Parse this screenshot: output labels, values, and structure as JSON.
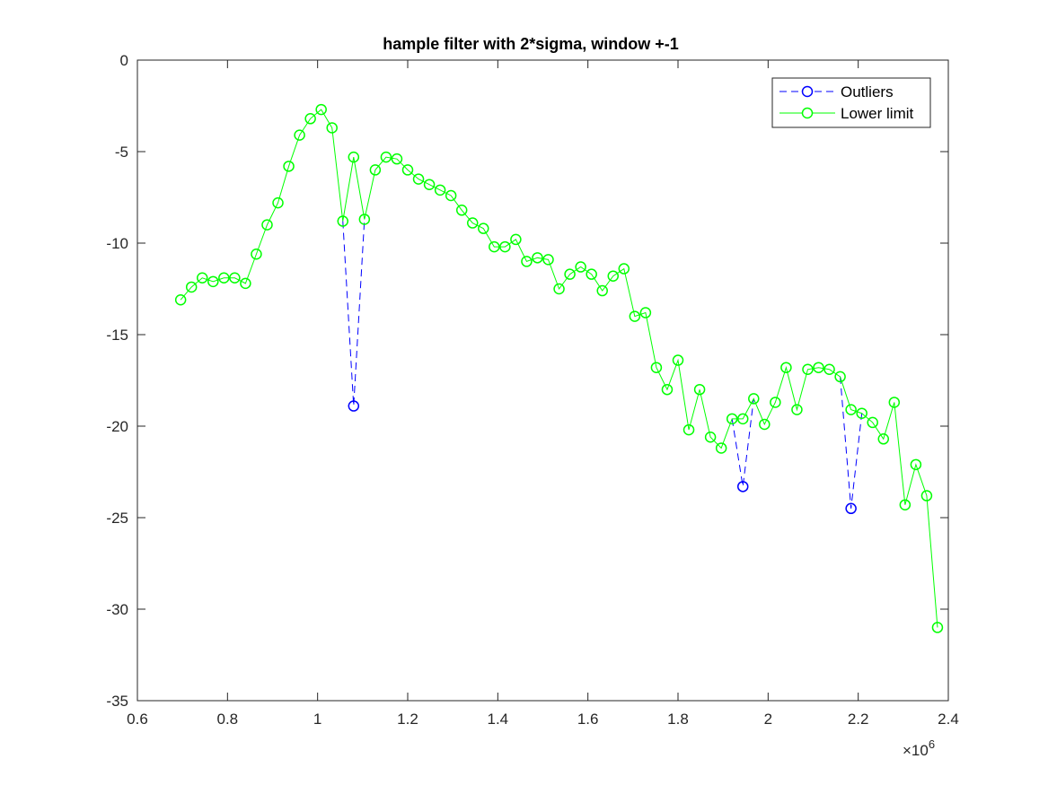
{
  "chart_data": {
    "type": "line",
    "title": "hample filter with 2*sigma, window +-1",
    "xlabel": "",
    "ylabel": "",
    "xlim": [
      600000,
      2400000
    ],
    "ylim": [
      -35,
      0
    ],
    "x_exponent_label": "×10",
    "x_exponent_power": "6",
    "xticks": [
      600000,
      800000,
      1000000,
      1200000,
      1400000,
      1600000,
      1800000,
      2000000,
      2200000,
      2400000
    ],
    "xtick_labels": [
      "0.6",
      "0.8",
      "1",
      "1.2",
      "1.4",
      "1.6",
      "1.8",
      "2",
      "2.2",
      "2.4"
    ],
    "yticks": [
      0,
      -5,
      -10,
      -15,
      -20,
      -25,
      -30,
      -35
    ],
    "ytick_labels": [
      "0",
      "-5",
      "-10",
      "-15",
      "-20",
      "-25",
      "-30",
      "-35"
    ],
    "grid": false,
    "legend_position": "top-right",
    "series": [
      {
        "name": "Outliers",
        "color": "#0000ff",
        "line_style": "dashed",
        "marker": "circle",
        "segments": [
          {
            "x": [
              1056000,
              1080000,
              1104000
            ],
            "y": [
              -8.8,
              -18.9,
              -8.7
            ],
            "marker_indices": [
              1
            ]
          },
          {
            "x": [
              1920000,
              1944000,
              1968000
            ],
            "y": [
              -19.6,
              -23.3,
              -18.5
            ],
            "marker_indices": [
              1
            ]
          },
          {
            "x": [
              2160000,
              2184000,
              2208000
            ],
            "y": [
              -17.3,
              -24.5,
              -19.3
            ],
            "marker_indices": [
              1
            ]
          }
        ]
      },
      {
        "name": "Lower limit",
        "color": "#00ff00",
        "line_style": "solid",
        "marker": "circle",
        "x": [
          696000,
          720000,
          744000,
          768000,
          792000,
          816000,
          840000,
          864000,
          888000,
          912000,
          936000,
          960000,
          984000,
          1008000,
          1032000,
          1056000,
          1080000,
          1104000,
          1128000,
          1152000,
          1176000,
          1200000,
          1224000,
          1248000,
          1272000,
          1296000,
          1320000,
          1344000,
          1368000,
          1392000,
          1416000,
          1440000,
          1464000,
          1488000,
          1512000,
          1536000,
          1560000,
          1584000,
          1608000,
          1632000,
          1656000,
          1680000,
          1704000,
          1728000,
          1752000,
          1776000,
          1800000,
          1824000,
          1848000,
          1872000,
          1896000,
          1920000,
          1944000,
          1968000,
          1992000,
          2016000,
          2040000,
          2064000,
          2088000,
          2112000,
          2136000,
          2160000,
          2184000,
          2208000,
          2232000,
          2256000,
          2280000,
          2304000,
          2328000,
          2352000,
          2376000
        ],
        "y": [
          -13.1,
          -12.4,
          -11.9,
          -12.1,
          -11.9,
          -11.9,
          -12.2,
          -10.6,
          -9.0,
          -7.8,
          -5.8,
          -4.1,
          -3.2,
          -2.7,
          -3.7,
          -8.8,
          -5.3,
          -8.7,
          -6.0,
          -5.3,
          -5.4,
          -6.0,
          -6.5,
          -6.8,
          -7.1,
          -7.4,
          -8.2,
          -8.9,
          -9.2,
          -10.2,
          -10.2,
          -9.8,
          -11.0,
          -10.8,
          -10.9,
          -12.5,
          -11.7,
          -11.3,
          -11.7,
          -12.6,
          -11.8,
          -11.4,
          -14.0,
          -13.8,
          -16.8,
          -18.0,
          -16.4,
          -20.2,
          -18.0,
          -20.6,
          -21.2,
          -19.6,
          -19.6,
          -18.5,
          -19.9,
          -18.7,
          -16.8,
          -19.1,
          -16.9,
          -16.8,
          -16.9,
          -17.3,
          -19.1,
          -19.3,
          -19.8,
          -20.7,
          -18.7,
          -24.3,
          -22.1,
          -23.8,
          -31.0
        ]
      }
    ]
  }
}
